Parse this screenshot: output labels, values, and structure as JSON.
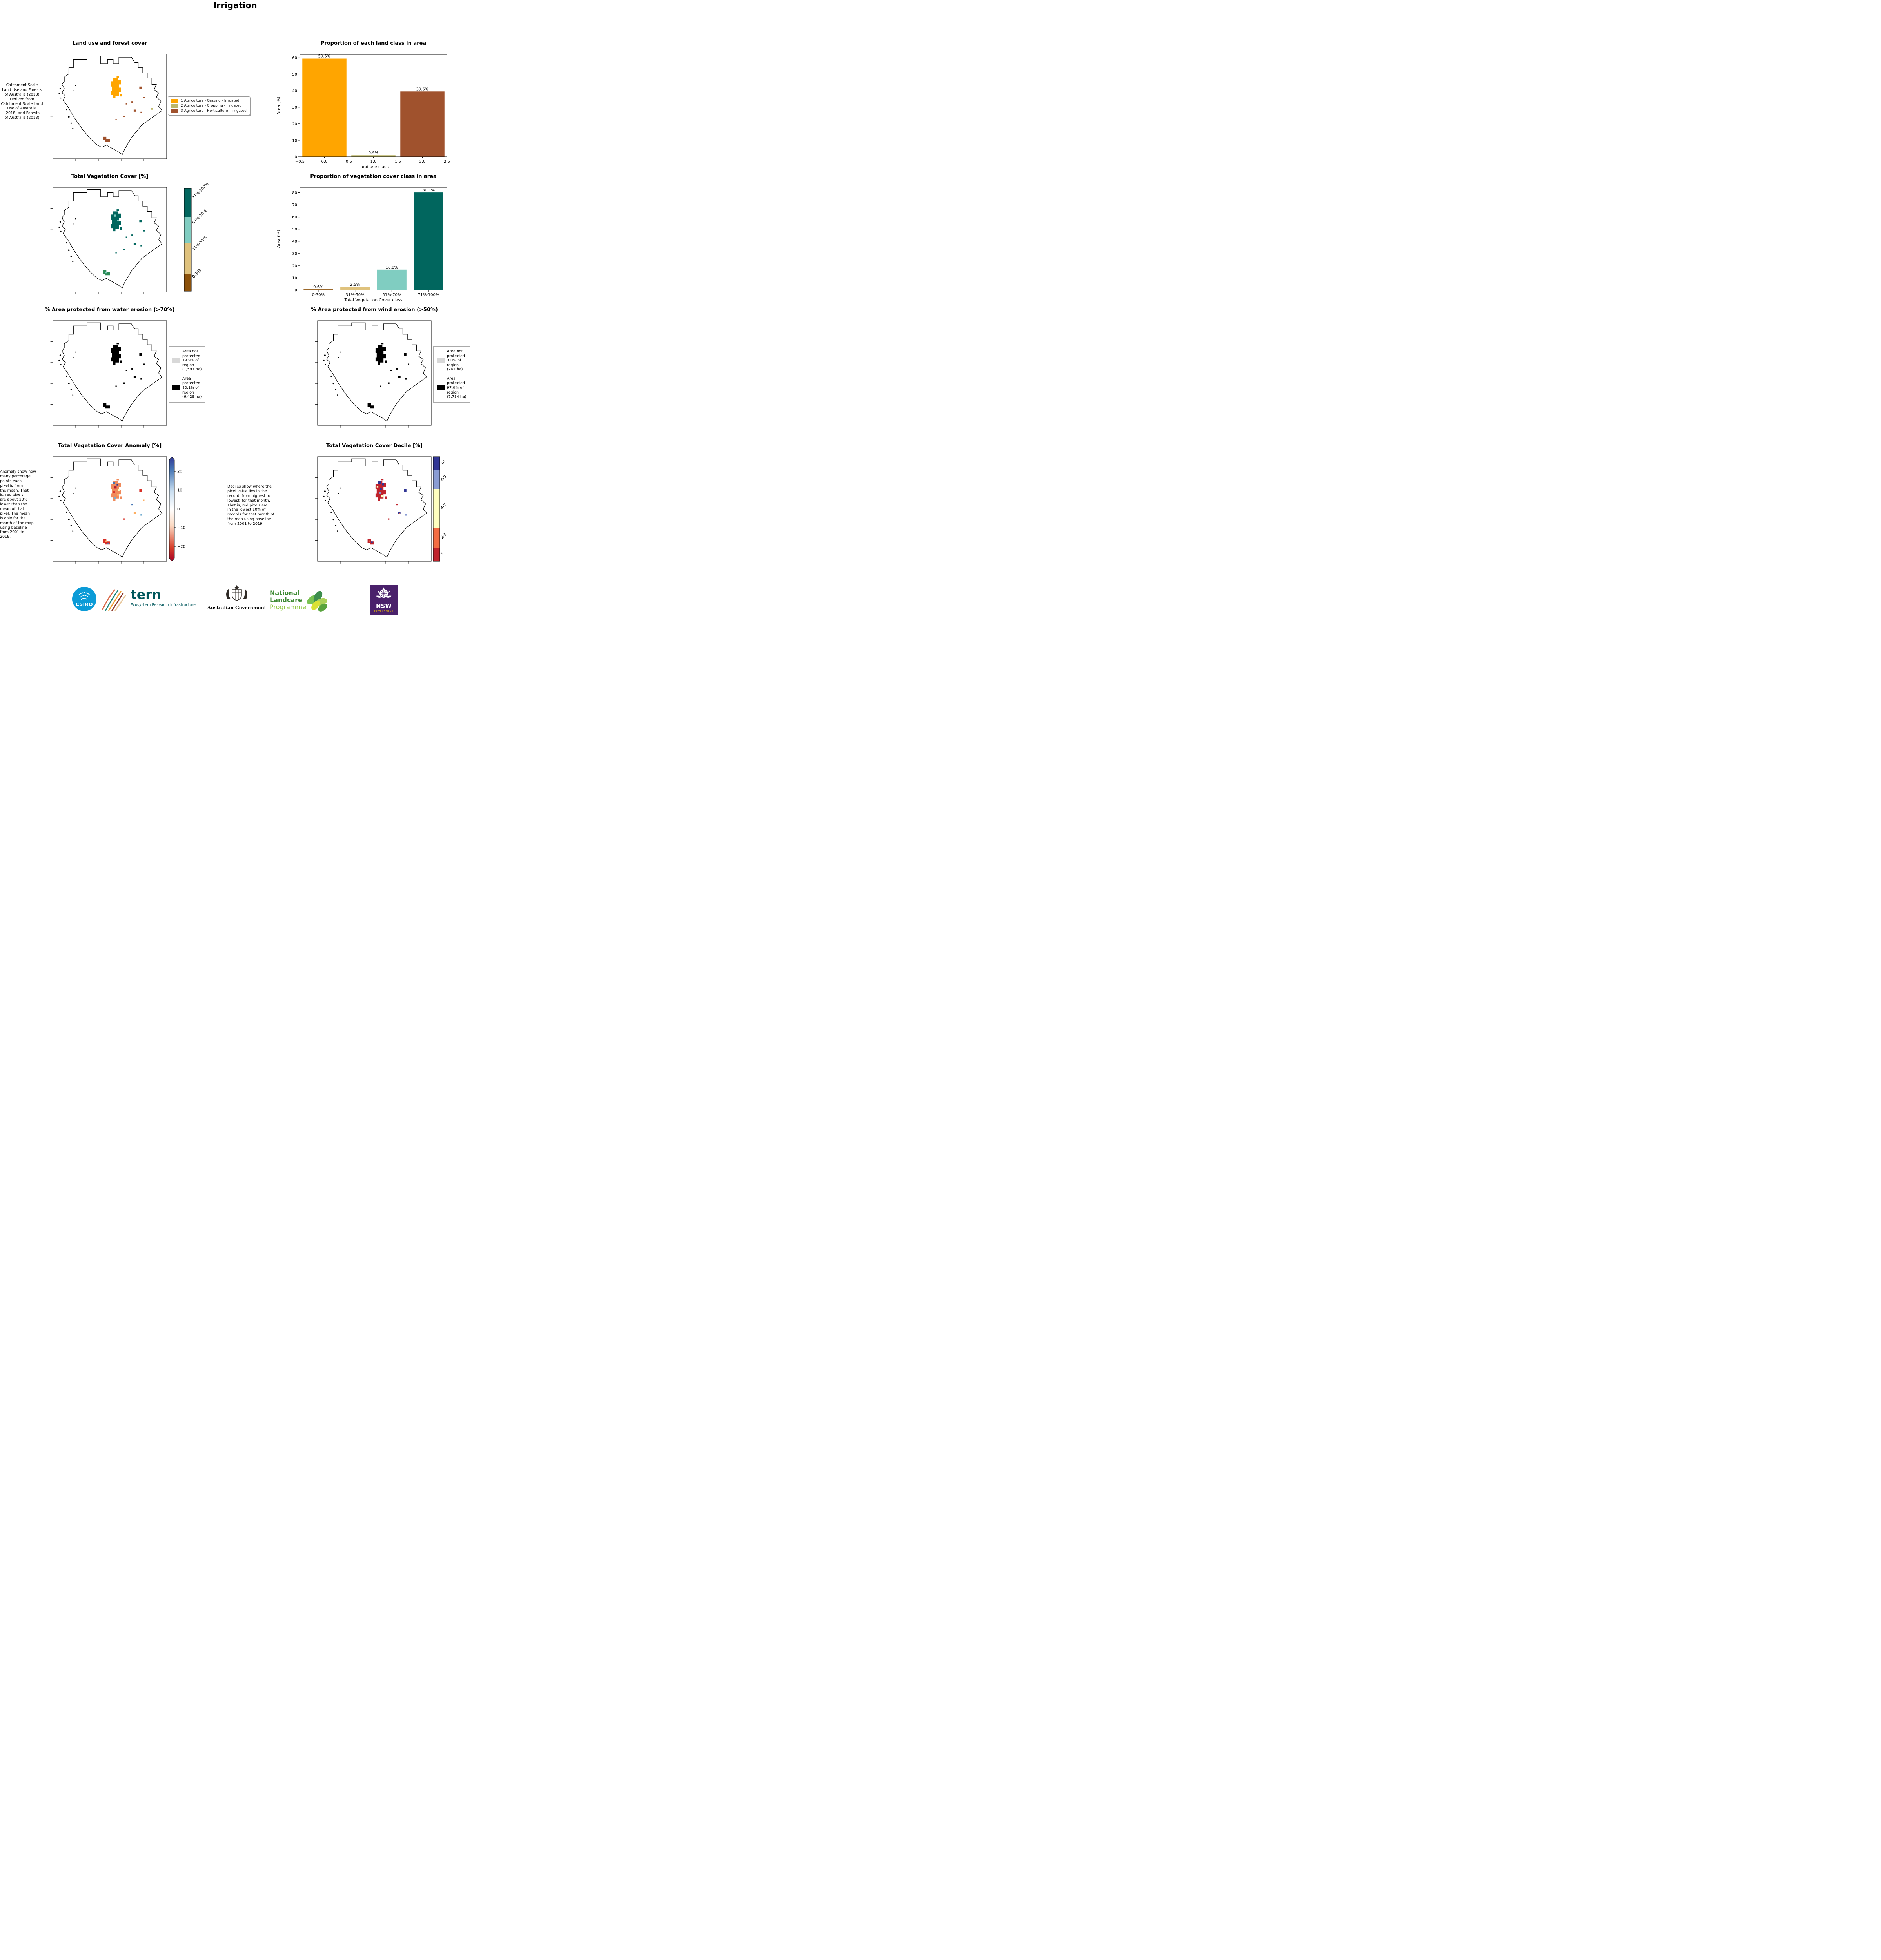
{
  "page": {
    "title": "Irrigation"
  },
  "row1": {
    "map_title": "Land use and forest cover",
    "description": " Catchment Scale\nLand Use and Forests\nof Australia (2018)\nDerived from\nCatchment Scale Land\nUse of Australia\n(2018) and Forests\nof Australia (2018)",
    "legend": {
      "items": [
        {
          "label": "1 Agriculture - Grazing - Irrigated",
          "color": "#FFA500"
        },
        {
          "label": "2 Agriculture - Cropping - Irrigated",
          "color": "#BDB76B"
        },
        {
          "label": "3 Agriculture - Horticulture - Irrigated",
          "color": "#A0522D"
        }
      ]
    }
  },
  "row2": {
    "map_title": "Total Vegetation Cover [%]",
    "colorbar": {
      "labels": [
        "71%-100%",
        "51%-70%",
        "31%-50%",
        "0-30%"
      ],
      "colors": [
        "#01665E",
        "#80CDC1",
        "#DFC27D",
        "#8C510A"
      ]
    }
  },
  "row3": {
    "water": {
      "map_title": "% Area protected from water erosion (>70%)",
      "legend": [
        {
          "label": "Area not\nprotected\n19.9% of\nregion\n(1,597 ha)",
          "color": "#D8D8D8"
        },
        {
          "label": "Area\nprotected\n80.1% of\nregion\n(6,428 ha)",
          "color": "#000000"
        }
      ]
    },
    "wind": {
      "map_title": "% Area protected from wind erosion (>50%)",
      "legend": [
        {
          "label": "Area not\nprotected\n3.0% of\nregion\n(241 ha)",
          "color": "#D8D8D8"
        },
        {
          "label": "Area\nprotected\n97.0% of\nregion\n(7,784 ha)",
          "color": "#000000"
        }
      ]
    }
  },
  "row4": {
    "anomaly": {
      "map_title": "Total Vegetation Cover Anomaly [%]",
      "description": "Anomaly show how\nmany percetage\npoints each\npixel is from\nthe mean. That\nis, red pixels\nare about 20%\nlower than the\nmean of that\npixel. The mean\nis only for the\nmonth of the map\nusing baseline\nfrom 2001 to\n2019.",
      "colorbar_ticks": [
        "20",
        "10",
        "0",
        "−10",
        "−20"
      ],
      "colorbar_top_color": "#313695",
      "colorbar_mid_color": "#FFFFFF",
      "colorbar_bottom_color": "#A50026"
    },
    "decile": {
      "map_title": "Total Vegetation Cover Decile [%]",
      "description": "Deciles show where the\npixel value lies in the\nrecord, from highest to\nlowest, for that month.\nThat is, red pixels are\nin the lowest 10% of\nrecords for that month of\nthe map using baseline\nfrom 2001 to 2019.",
      "colorbar_labels": [
        "10",
        "8-9",
        "4-7",
        "2-3",
        "1"
      ],
      "colorbar_colors": [
        "#313695",
        "#8A9CD3",
        "#FFFFBF",
        "#F46D43",
        "#C0232C"
      ]
    }
  },
  "chart_data": [
    {
      "id": "chart-landclass",
      "type": "bar",
      "title": "Proportion of each land class in area",
      "xlabel": "Land use class",
      "ylabel": "Area (%)",
      "x": [
        0,
        1,
        2
      ],
      "values": [
        59.5,
        0.9,
        39.6
      ],
      "bar_labels": [
        "59.5%",
        "0.9%",
        "39.6%"
      ],
      "colors": [
        "#FFA500",
        "#BDB76B",
        "#A0522D"
      ],
      "bar_width": 0.9,
      "xlim": [
        -0.5,
        2.5
      ],
      "x_ticks": [
        -0.5,
        0,
        0.5,
        1,
        1.5,
        2,
        2.5
      ],
      "x_tick_labels": [
        "−0.5",
        "0.0",
        "0.5",
        "1.0",
        "1.5",
        "2.0",
        "2.5"
      ],
      "ylim": [
        0,
        62
      ],
      "y_ticks": [
        0,
        10,
        20,
        30,
        40,
        50,
        60
      ],
      "legend_position": "none",
      "grid": false
    },
    {
      "id": "chart-vegcover",
      "type": "bar",
      "title": "Proportion of vegetation cover class in area",
      "xlabel": "Total Vegetation Cover class",
      "ylabel": "Area (%)",
      "categories": [
        "0-30%",
        "31%-50%",
        "51%-70%",
        "71%-100%"
      ],
      "values": [
        0.6,
        2.5,
        16.8,
        80.1
      ],
      "bar_labels": [
        "0.6%",
        "2.5%",
        "16.8%",
        "80.1%"
      ],
      "colors": [
        "#8C510A",
        "#DFC27D",
        "#80CDC1",
        "#01665E"
      ],
      "ylim": [
        0,
        84
      ],
      "y_ticks": [
        0,
        10,
        20,
        30,
        40,
        50,
        60,
        70,
        80
      ],
      "legend_position": "none",
      "grid": false
    }
  ],
  "footer": {
    "csiro": "CSIRO",
    "tern": "tern",
    "tern_tagline": "Ecosystem Research Infrastructure",
    "aus_gov": "Australian Government",
    "landcare_line1": "National",
    "landcare_line2": "Landcare",
    "landcare_line3": "Programme",
    "nsw": "NSW",
    "nsw_sub": "GOVERNMENT"
  }
}
